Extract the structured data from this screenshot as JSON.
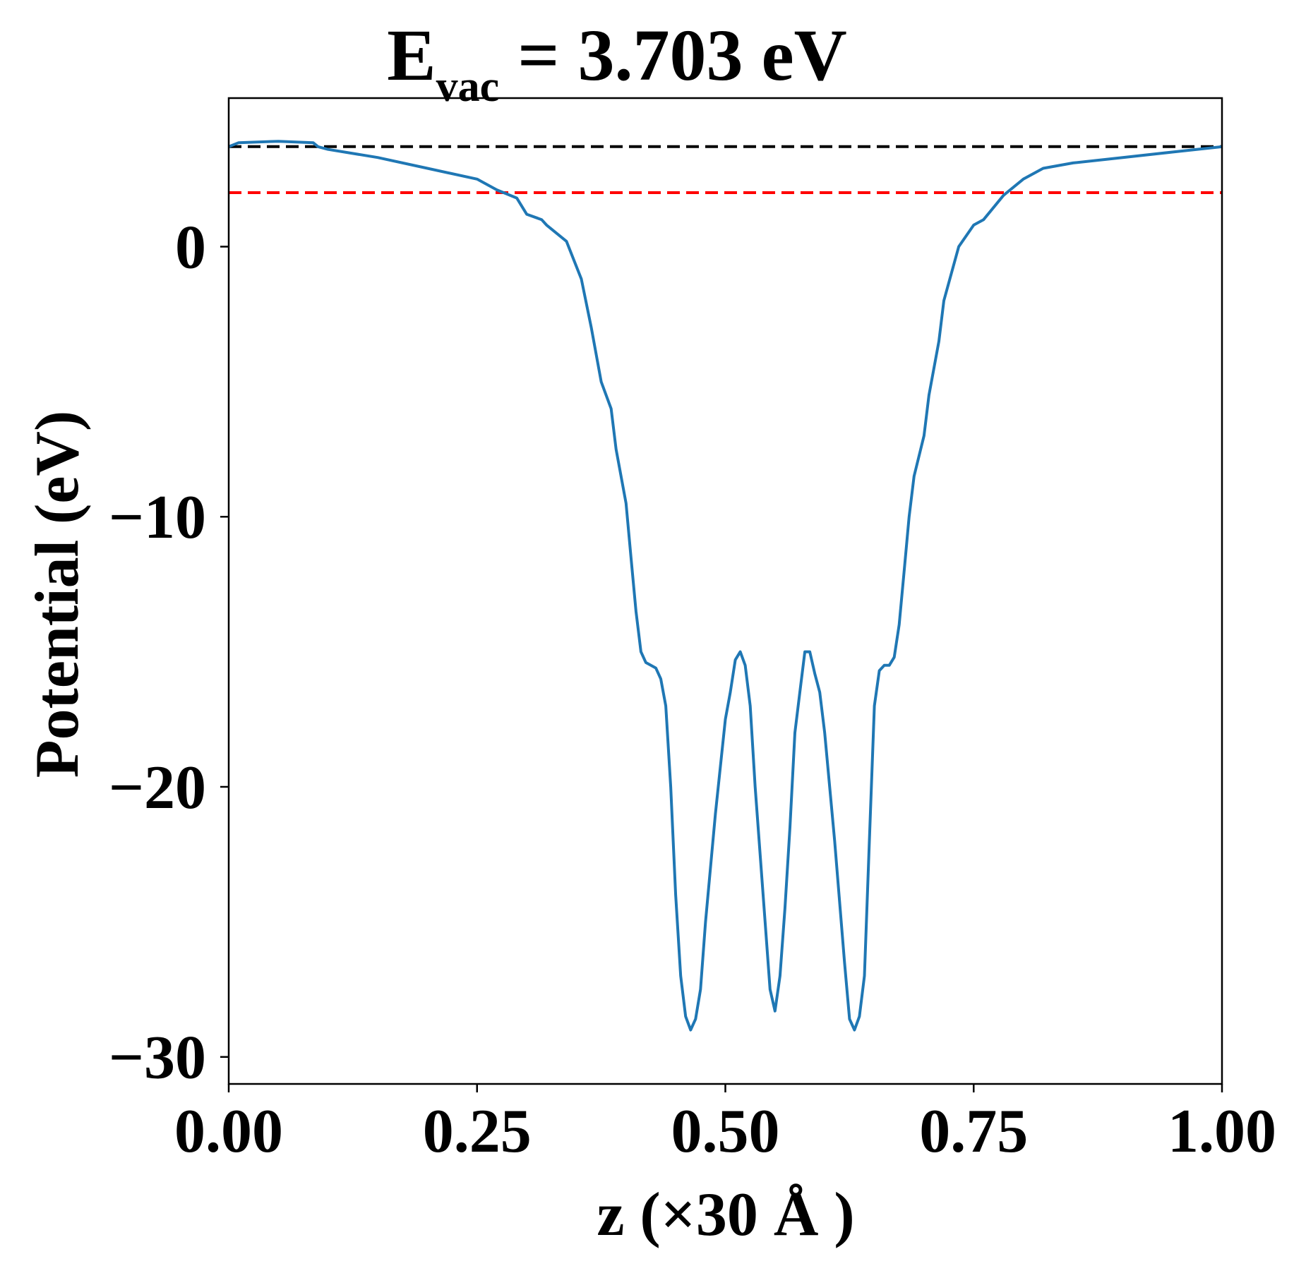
{
  "chart_data": {
    "type": "line",
    "title": {
      "main": "E",
      "subscript": "vac",
      "rest": " = 3.703 eV"
    },
    "xlabel": "z (×30 Å )",
    "ylabel": "Potential (eV)",
    "xlim": [
      0.0,
      1.0
    ],
    "ylim": [
      -31.0,
      5.5
    ],
    "xticks": [
      0.0,
      0.25,
      0.5,
      0.75,
      1.0
    ],
    "xtick_labels": [
      "0.00",
      "0.25",
      "0.50",
      "0.75",
      "1.00"
    ],
    "yticks": [
      0,
      -10,
      -20,
      -30
    ],
    "ytick_labels": [
      "0",
      "−10",
      "−20",
      "−30"
    ],
    "grid": false,
    "reference_lines": [
      {
        "y": 3.703,
        "color": "#000000",
        "style": "dashed"
      },
      {
        "y": 2.0,
        "color": "#ff0000",
        "style": "dashed"
      }
    ],
    "series": [
      {
        "color": "#1f77b4",
        "x": [
          0.0,
          0.01,
          0.05,
          0.085,
          0.09,
          0.1,
          0.15,
          0.2,
          0.25,
          0.27,
          0.29,
          0.3,
          0.315,
          0.32,
          0.34,
          0.355,
          0.365,
          0.375,
          0.385,
          0.39,
          0.4,
          0.405,
          0.41,
          0.415,
          0.42,
          0.425,
          0.43,
          0.435,
          0.44,
          0.445,
          0.45,
          0.455,
          0.46,
          0.465,
          0.47,
          0.475,
          0.48,
          0.49,
          0.5,
          0.505,
          0.51,
          0.515,
          0.52,
          0.525,
          0.53,
          0.54,
          0.545,
          0.55,
          0.555,
          0.56,
          0.565,
          0.57,
          0.575,
          0.58,
          0.585,
          0.59,
          0.595,
          0.6,
          0.61,
          0.62,
          0.625,
          0.63,
          0.635,
          0.64,
          0.645,
          0.65,
          0.655,
          0.66,
          0.665,
          0.67,
          0.675,
          0.68,
          0.685,
          0.69,
          0.7,
          0.705,
          0.715,
          0.72,
          0.735,
          0.75,
          0.76,
          0.78,
          0.8,
          0.82,
          0.85,
          0.9,
          0.95,
          1.0
        ],
        "y": [
          3.7,
          3.85,
          3.9,
          3.85,
          3.7,
          3.6,
          3.3,
          2.9,
          2.5,
          2.1,
          1.8,
          1.2,
          1.0,
          0.8,
          0.2,
          -1.2,
          -3.0,
          -5.0,
          -6.0,
          -7.5,
          -9.5,
          -11.5,
          -13.5,
          -15.0,
          -15.4,
          -15.5,
          -15.6,
          -16.0,
          -17.0,
          -20.0,
          -24.0,
          -27.0,
          -28.5,
          -29.0,
          -28.6,
          -27.5,
          -25.0,
          -21.0,
          -17.5,
          -16.5,
          -15.3,
          -15.0,
          -15.5,
          -17.0,
          -20.0,
          -25.0,
          -27.5,
          -28.3,
          -27.0,
          -24.5,
          -21.5,
          -18.0,
          -16.5,
          -15.0,
          -15.0,
          -15.8,
          -16.5,
          -18.0,
          -22.0,
          -26.5,
          -28.6,
          -29.0,
          -28.5,
          -27.0,
          -22.0,
          -17.0,
          -15.7,
          -15.5,
          -15.5,
          -15.2,
          -14.0,
          -12.0,
          -10.0,
          -8.5,
          -7.0,
          -5.5,
          -3.5,
          -2.0,
          0.0,
          0.8,
          1.0,
          1.9,
          2.5,
          2.9,
          3.1,
          3.3,
          3.5,
          3.7
        ]
      }
    ]
  }
}
